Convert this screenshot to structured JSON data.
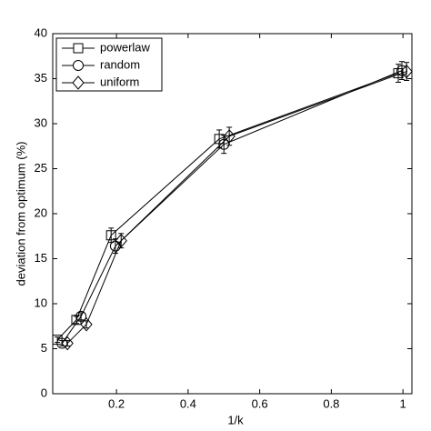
{
  "chart_data": {
    "type": "line",
    "x_label": "1/k",
    "y_label": "deviation from optimum (%)",
    "xlim": [
      0.022,
      1.025
    ],
    "ylim": [
      0,
      40
    ],
    "xticks": [
      0.2,
      0.4,
      0.6,
      0.8,
      1
    ],
    "yticks": [
      0,
      5,
      10,
      15,
      20,
      25,
      30,
      35,
      40
    ],
    "legend": "upper-left",
    "series": [
      {
        "name": "powerlaw",
        "color": "#000000",
        "marker": "square",
        "x": [
          0.035,
          0.088,
          0.185,
          0.487,
          0.987
        ],
        "values": [
          6.0,
          8.2,
          17.6,
          28.3,
          35.6
        ],
        "errors": [
          0.3,
          0.4,
          0.8,
          1.0,
          1.0
        ]
      },
      {
        "name": "random",
        "color": "#000000",
        "marker": "circle",
        "x": [
          0.048,
          0.101,
          0.197,
          0.5,
          0.997
        ],
        "values": [
          5.6,
          8.6,
          16.4,
          27.7,
          35.9
        ],
        "errors": [
          0.3,
          0.4,
          0.8,
          1.0,
          1.0
        ]
      },
      {
        "name": "uniform",
        "color": "#000000",
        "marker": "diamond",
        "x": [
          0.063,
          0.116,
          0.213,
          0.515,
          1.01
        ],
        "values": [
          5.6,
          7.7,
          17.0,
          28.6,
          35.8
        ],
        "errors": [
          0.3,
          0.4,
          0.8,
          1.0,
          1.0
        ]
      }
    ]
  }
}
